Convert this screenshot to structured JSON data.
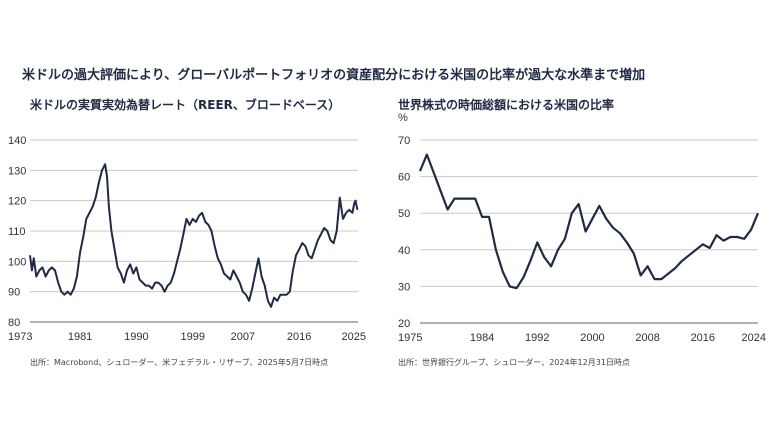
{
  "header": {
    "main_title": "米ドルの過大評価により、グローバルポートフォリオの資産配分における米国の比率が過大な水準まで増加"
  },
  "chart_data": [
    {
      "type": "line",
      "title": "米ドルの実質実効為替レート（REER、ブロードベース）",
      "source": "出所：Macrobond、シュローダー、米フェデラル・リザーブ、2025年5月7日時点",
      "ylim": [
        80,
        140
      ],
      "yticks": [
        "140",
        "130",
        "120",
        "110",
        "100",
        "90",
        "80"
      ],
      "xlim": [
        1973,
        2025.4
      ],
      "xticks": [
        "1973",
        "1981",
        "1990",
        "1999",
        "2007",
        "2016",
        "2025"
      ],
      "grid": true,
      "color": "#1f2a44",
      "x": [
        1973.0,
        1973.3,
        1973.6,
        1974.0,
        1974.5,
        1975.0,
        1975.5,
        1976.0,
        1976.5,
        1977.0,
        1977.5,
        1978.0,
        1978.5,
        1979.0,
        1979.5,
        1980.0,
        1980.5,
        1981.0,
        1981.5,
        1982.0,
        1982.5,
        1983.0,
        1983.5,
        1984.0,
        1984.5,
        1985.0,
        1985.3,
        1985.6,
        1986.0,
        1986.5,
        1987.0,
        1987.5,
        1988.0,
        1988.5,
        1989.0,
        1989.5,
        1990.0,
        1990.5,
        1991.0,
        1991.5,
        1992.0,
        1992.5,
        1993.0,
        1993.5,
        1994.0,
        1994.5,
        1995.0,
        1995.5,
        1996.0,
        1996.5,
        1997.0,
        1997.5,
        1998.0,
        1998.5,
        1999.0,
        1999.5,
        2000.0,
        2000.5,
        2001.0,
        2001.5,
        2002.0,
        2002.5,
        2003.0,
        2003.5,
        2004.0,
        2004.5,
        2005.0,
        2005.5,
        2006.0,
        2006.5,
        2007.0,
        2007.5,
        2008.0,
        2008.5,
        2009.0,
        2009.5,
        2010.0,
        2010.5,
        2011.0,
        2011.5,
        2012.0,
        2012.5,
        2013.0,
        2013.5,
        2014.0,
        2014.5,
        2015.0,
        2015.5,
        2016.0,
        2016.5,
        2017.0,
        2017.5,
        2018.0,
        2018.5,
        2019.0,
        2019.5,
        2020.0,
        2020.5,
        2021.0,
        2021.5,
        2022.0,
        2022.5,
        2023.0,
        2023.5,
        2024.0,
        2024.5,
        2024.8,
        2025.0,
        2025.3
      ],
      "values": [
        102,
        97,
        101,
        95,
        97,
        98,
        95,
        97,
        98,
        97,
        93,
        90,
        89,
        90,
        89,
        91,
        95,
        103,
        108,
        114,
        116,
        118,
        121,
        126,
        130,
        132,
        128,
        118,
        110,
        104,
        98,
        96,
        93,
        97,
        99,
        96,
        98,
        94,
        93,
        92,
        92,
        91,
        93,
        93,
        92,
        90,
        92,
        93,
        96,
        100,
        104,
        109,
        114,
        112,
        114,
        113,
        115,
        116,
        113,
        112,
        110,
        105,
        101,
        99,
        96,
        95,
        94,
        97,
        95,
        93,
        90,
        89,
        87,
        91,
        96,
        101,
        95,
        92,
        87,
        85,
        88,
        87,
        89,
        89,
        89,
        90,
        97,
        102,
        104,
        106,
        105,
        102,
        101,
        104,
        107,
        109,
        111,
        110,
        107,
        106,
        110,
        121,
        114,
        116,
        117,
        116,
        119,
        120,
        117
      ]
    },
    {
      "type": "line",
      "title": "世界株式の時価総額における米国の比率",
      "source": "出所：世界銀行グループ、シュローダー、2024年12月31日時点",
      "unit_label": "%",
      "ylim": [
        20,
        70
      ],
      "yticks": [
        "70",
        "60",
        "50",
        "40",
        "30",
        "20"
      ],
      "xlim": [
        1975,
        2024
      ],
      "xticks": [
        "1975",
        "1984",
        "1992",
        "2000",
        "2008",
        "2016",
        "2024"
      ],
      "grid": true,
      "color": "#1f2a44",
      "x": [
        1975,
        1976,
        1977,
        1978,
        1979,
        1980,
        1981,
        1982,
        1983,
        1984,
        1985,
        1986,
        1987,
        1988,
        1989,
        1990,
        1991,
        1992,
        1993,
        1994,
        1995,
        1996,
        1997,
        1998,
        1999,
        2000,
        2001,
        2002,
        2003,
        2004,
        2005,
        2006,
        2007,
        2008,
        2009,
        2010,
        2011,
        2012,
        2013,
        2014,
        2015,
        2016,
        2017,
        2018,
        2019,
        2020,
        2021,
        2022,
        2023,
        2024
      ],
      "values": [
        61.5,
        66,
        61,
        56,
        51,
        54,
        54,
        54,
        54,
        49,
        49,
        40,
        34,
        30,
        29.5,
        32.5,
        37,
        42,
        38,
        35.5,
        40,
        43,
        50,
        52.5,
        45,
        48.5,
        52,
        48.5,
        46,
        44.5,
        42,
        39,
        33,
        35.5,
        32,
        32,
        33.5,
        35,
        37,
        38.5,
        40,
        41.5,
        40.5,
        44,
        42.5,
        43.5,
        43.5,
        43,
        45.5,
        50
      ]
    }
  ]
}
